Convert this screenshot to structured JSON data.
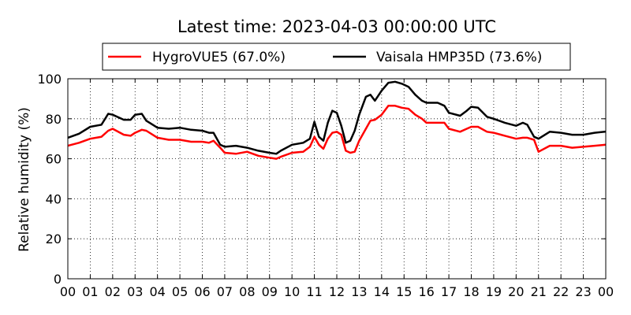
{
  "chart_data": {
    "type": "line",
    "title": "Latest time: 2023-04-03 00:00:00 UTC",
    "xlabel": "",
    "ylabel": "Relative humidity (%)",
    "xlim": [
      0,
      24
    ],
    "ylim": [
      0,
      100
    ],
    "x_tick_labels": [
      "00",
      "01",
      "02",
      "03",
      "04",
      "05",
      "06",
      "07",
      "08",
      "09",
      "10",
      "11",
      "12",
      "13",
      "14",
      "15",
      "16",
      "17",
      "18",
      "19",
      "20",
      "21",
      "22",
      "23",
      "00"
    ],
    "y_tick_labels": [
      "0",
      "20",
      "40",
      "60",
      "80",
      "100"
    ],
    "y_ticks": [
      0,
      20,
      40,
      60,
      80,
      100
    ],
    "grid": true,
    "legend_position": "top",
    "x": [
      0,
      0.5,
      1,
      1.5,
      1.8,
      2,
      2.5,
      2.8,
      3,
      3.3,
      3.5,
      4,
      4.5,
      5,
      5.5,
      6,
      6.3,
      6.5,
      6.8,
      7,
      7.5,
      8,
      8.5,
      9,
      9.3,
      9.5,
      10,
      10.5,
      10.8,
      11,
      11.2,
      11.4,
      11.6,
      11.8,
      12,
      12.2,
      12.4,
      12.6,
      12.8,
      13,
      13.3,
      13.5,
      13.7,
      14,
      14.3,
      14.6,
      14.9,
      15.2,
      15.5,
      15.8,
      16,
      16.5,
      16.8,
      17,
      17.5,
      17.8,
      18,
      18.3,
      18.7,
      19,
      19.5,
      20,
      20.3,
      20.5,
      20.8,
      21,
      21.5,
      22,
      22.5,
      23,
      23.5,
      24
    ],
    "series": [
      {
        "name": "HygroVUE5 (67.0%)",
        "color": "#ff0000",
        "values": [
          66.5,
          68,
          70,
          71,
          74,
          75,
          72,
          71.5,
          73,
          74.5,
          74,
          70.5,
          69.5,
          69.5,
          68.5,
          68.5,
          68,
          69,
          65.5,
          63,
          62.5,
          63.5,
          61.5,
          60.5,
          60,
          61,
          63,
          63.5,
          66,
          71,
          67,
          65,
          70,
          73,
          73.5,
          72,
          64,
          63,
          63.5,
          69,
          75,
          79,
          79.5,
          82,
          86.5,
          86.5,
          85.5,
          85,
          82,
          80,
          78,
          78,
          78,
          75,
          73.5,
          75,
          76,
          76,
          73.5,
          73,
          71.5,
          70,
          70.5,
          70.5,
          69.5,
          63.5,
          66.5,
          66.5,
          65.5,
          66,
          66.5,
          67
        ]
      },
      {
        "name": "Vaisala HMP35D (73.6%)",
        "color": "#000000",
        "values": [
          70.5,
          72.5,
          76,
          77,
          82.5,
          82,
          79.5,
          79.5,
          82,
          82.5,
          79,
          75.5,
          75,
          75.5,
          74.5,
          74,
          73,
          73,
          67,
          66,
          66.5,
          65.5,
          64,
          63,
          62.5,
          64,
          67,
          68,
          70,
          78.5,
          71,
          69,
          78,
          84,
          83,
          76.5,
          68,
          69,
          74,
          82,
          91,
          92,
          89,
          94,
          98,
          98.5,
          97.5,
          96,
          92,
          89,
          88,
          88,
          86.5,
          83,
          81.5,
          84,
          86,
          85.5,
          81,
          80,
          78,
          76.5,
          78,
          77,
          71,
          70,
          73.5,
          73,
          72,
          72,
          73,
          73.6
        ]
      }
    ]
  }
}
